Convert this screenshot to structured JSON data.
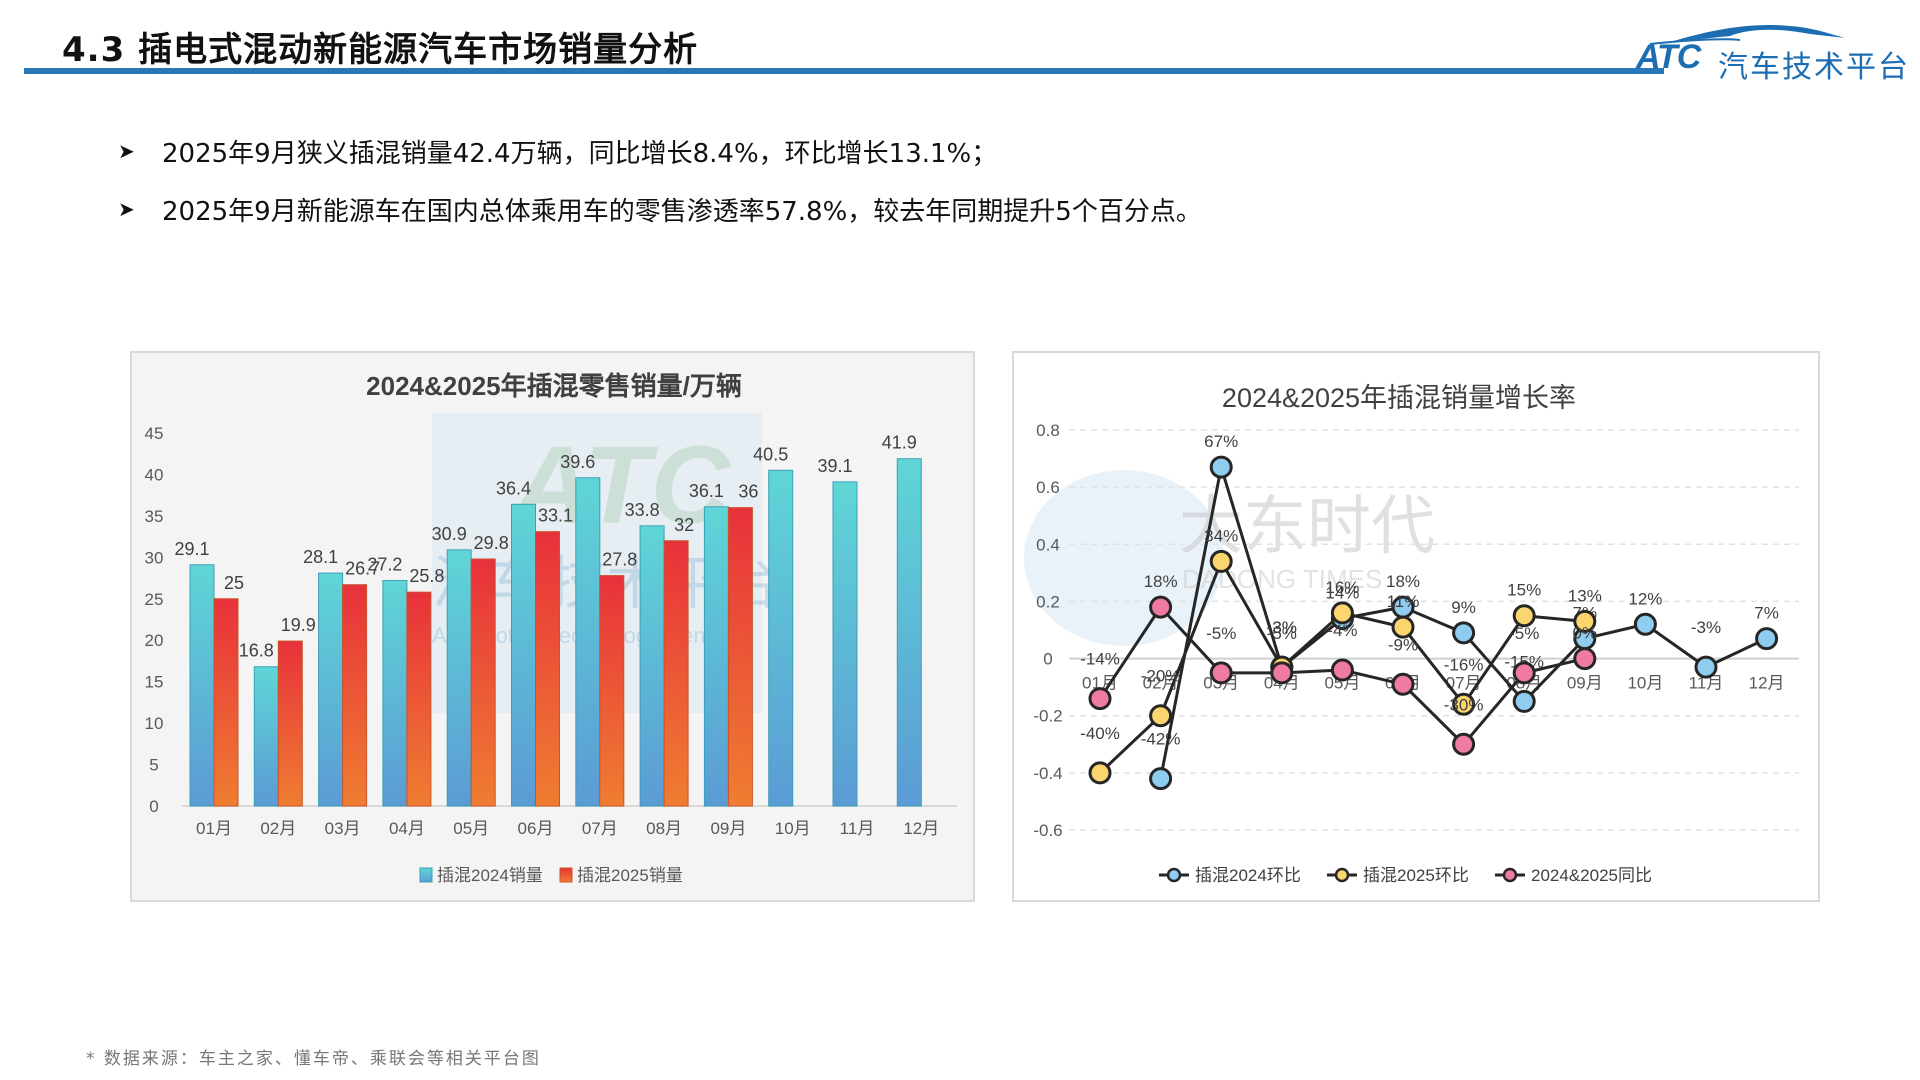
{
  "header": {
    "title": "4.3 插电式混动新能源汽车市场销量分析",
    "logo_mark": "ATC",
    "logo_text": "汽车技术平台",
    "rule_color": "#2878b8"
  },
  "bullets": [
    {
      "icon": "arrow-bullet-icon",
      "text": "2025年9月狭义插混销量42.4万辆，同比增长8.4%，环比增长13.1%；"
    },
    {
      "icon": "arrow-bullet-icon",
      "text": "2025年9月新能源车在国内总体乘用车的零售渗透率57.8%，较去年同期提升5个百分点。"
    }
  ],
  "footnote": "* 数据来源：车主之家、懂车帝、乘联会等相关平台图",
  "watermarks": {
    "bar_chart": {
      "mark": "ATC",
      "text": "汽车技术平台",
      "sub": "Automotive Technology Center"
    },
    "line_chart": {
      "text": "大东时代",
      "sub": "DADONG TIMES"
    }
  },
  "chart_data": [
    {
      "type": "bar",
      "title": "2024&2025年插混零售销量/万辆",
      "categories": [
        "01月",
        "02月",
        "03月",
        "04月",
        "05月",
        "06月",
        "07月",
        "08月",
        "09月",
        "10月",
        "11月",
        "12月"
      ],
      "series": [
        {
          "name": "插混2024销量",
          "values": [
            29.1,
            16.8,
            28.1,
            27.2,
            30.9,
            36.4,
            39.6,
            33.8,
            36.1,
            40.5,
            39.1,
            41.9
          ],
          "color_top": "#5fd6d6",
          "color_bottom": "#5b9bd5"
        },
        {
          "name": "插混2025销量",
          "values": [
            25,
            19.9,
            26.7,
            25.8,
            29.8,
            33.1,
            27.8,
            32,
            36,
            null,
            null,
            null
          ],
          "color_top": "#e8313b",
          "color_bottom": "#ef7d31"
        }
      ],
      "yticks": [
        0,
        5,
        10,
        15,
        20,
        25,
        30,
        35,
        40,
        45
      ],
      "ylim": [
        0,
        45
      ],
      "xlabel": "",
      "ylabel": "",
      "grid": false,
      "legend_position": "bottom"
    },
    {
      "type": "line",
      "title": "2024&2025年插混销量增长率",
      "categories": [
        "01月",
        "02月",
        "03月",
        "04月",
        "05月",
        "06月",
        "07月",
        "08月",
        "09月",
        "10月",
        "11月",
        "12月"
      ],
      "series": [
        {
          "name": "插混2024环比",
          "values": [
            null,
            -0.42,
            0.67,
            -0.03,
            0.14,
            0.18,
            0.09,
            -0.15,
            0.07,
            0.12,
            -0.03,
            0.07
          ],
          "labels": [
            "",
            "-42%",
            "67%",
            "-3%",
            "14%",
            "18%",
            "9%",
            "-15%",
            "7%",
            "12%",
            "-3%",
            "7%"
          ],
          "color": "#8ecdf0"
        },
        {
          "name": "插混2025环比",
          "values": [
            -0.4,
            -0.2,
            0.34,
            -0.03,
            0.16,
            0.11,
            -0.16,
            0.15,
            0.13,
            null,
            null,
            null
          ],
          "labels": [
            "-40%",
            "-20%",
            "34%",
            "-3%",
            "16%",
            "11%",
            "-16%",
            "15%",
            "13%",
            "",
            "",
            ""
          ],
          "color": "#fbd56e"
        },
        {
          "name": "2024&2025同比",
          "values": [
            -0.14,
            0.18,
            -0.05,
            -0.05,
            -0.04,
            -0.09,
            -0.3,
            -0.05,
            0.0,
            null,
            null,
            null
          ],
          "labels": [
            "-14%",
            "18%",
            "-5%",
            "-5%",
            "-4%",
            "-9%",
            "-30%",
            "-5%",
            "0%",
            "",
            "",
            ""
          ],
          "color": "#ef7aa3"
        }
      ],
      "yticks": [
        -0.6,
        -0.4,
        -0.2,
        0,
        0.2,
        0.4,
        0.6,
        0.8
      ],
      "ylim": [
        -0.6,
        0.8
      ],
      "xlabel": "",
      "ylabel": "",
      "grid": "horizontal-dashed",
      "legend_position": "bottom"
    }
  ]
}
